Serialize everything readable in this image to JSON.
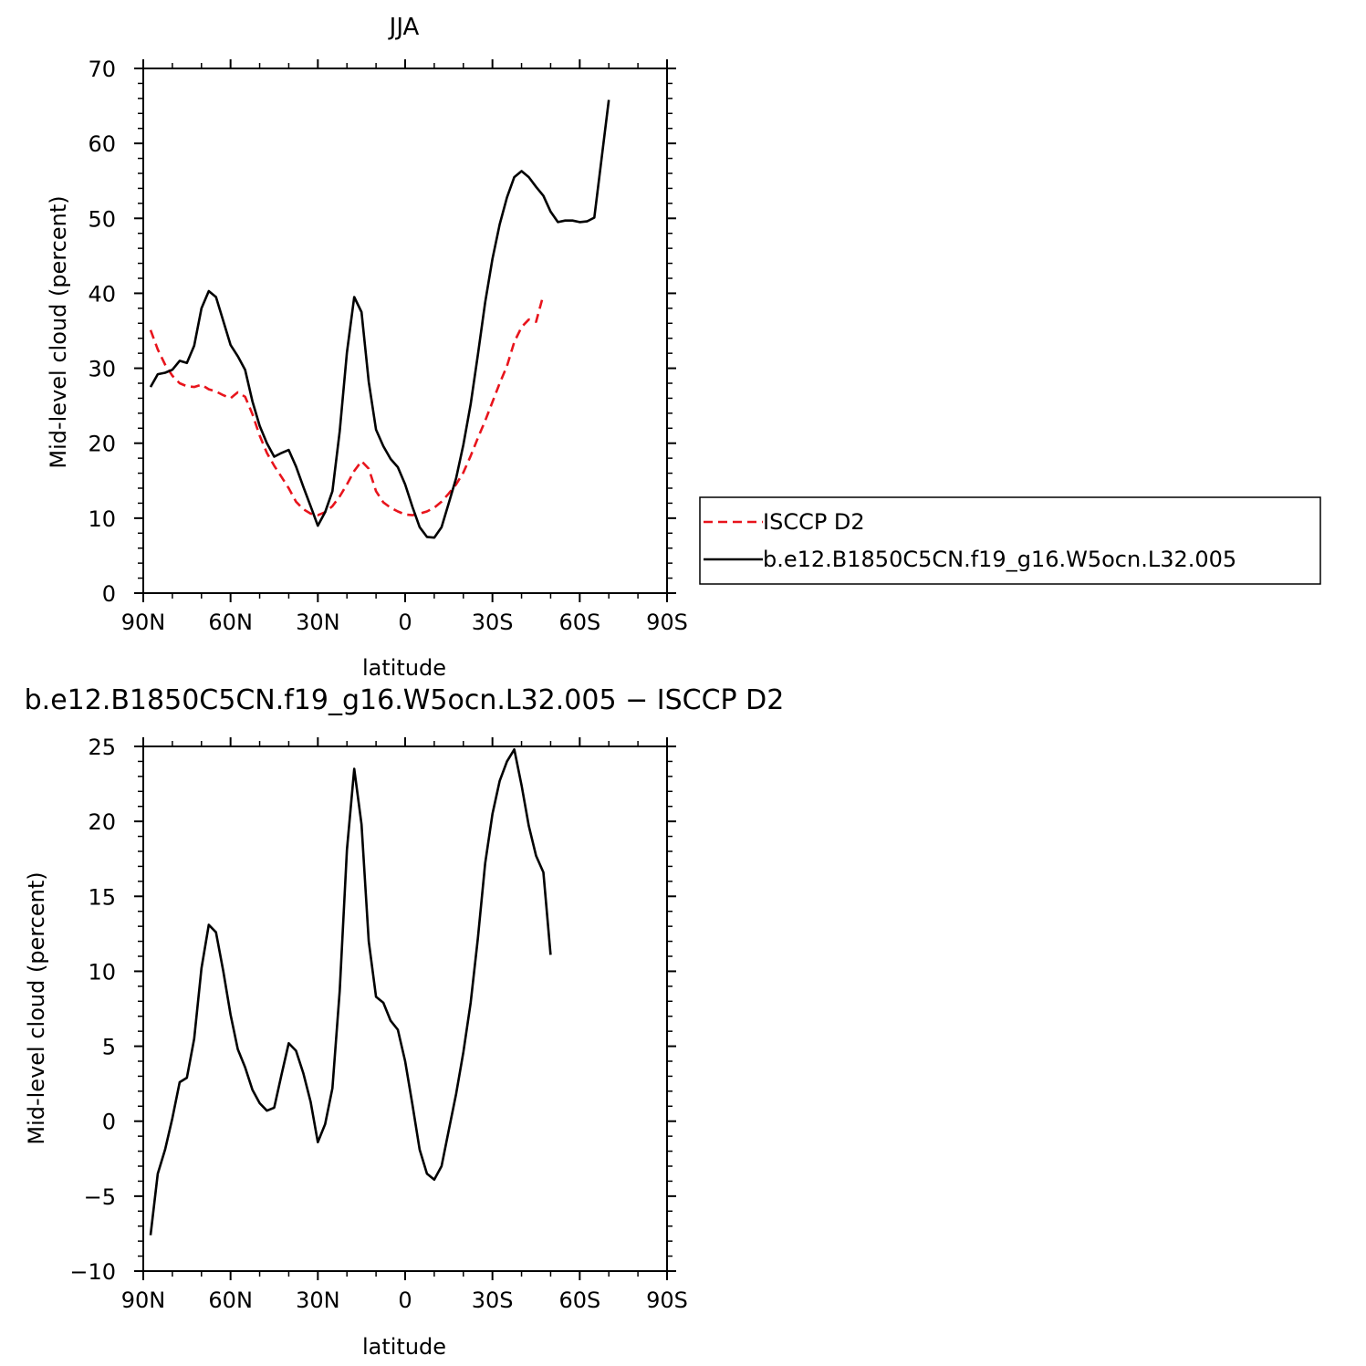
{
  "chart_data": [
    {
      "type": "line",
      "title": "JJA",
      "xlabel": "latitude",
      "ylabel": "Mid-level cloud (percent)",
      "xlim": [
        90,
        -90
      ],
      "ylim": [
        0,
        70
      ],
      "x_ticks": [
        {
          "value": 90,
          "label": "90N"
        },
        {
          "value": 60,
          "label": "60N"
        },
        {
          "value": 30,
          "label": "30N"
        },
        {
          "value": 0,
          "label": "0"
        },
        {
          "value": -30,
          "label": "30S"
        },
        {
          "value": -60,
          "label": "60S"
        },
        {
          "value": -90,
          "label": "90S"
        }
      ],
      "y_ticks": [
        0,
        10,
        20,
        30,
        40,
        50,
        60,
        70
      ],
      "grid": false,
      "legend_position": "right",
      "series": [
        {
          "name": "ISCCP D2",
          "color": "#e8141c",
          "dash": true,
          "points": [
            [
              87.5,
              35.1
            ],
            [
              85,
              32.5
            ],
            [
              82.5,
              30.5
            ],
            [
              80,
              29
            ],
            [
              77.5,
              28
            ],
            [
              75,
              27.6
            ],
            [
              72.5,
              27.5
            ],
            [
              70,
              27.8
            ],
            [
              67.5,
              27.2
            ],
            [
              65,
              26.9
            ],
            [
              62.5,
              26.4
            ],
            [
              60,
              26
            ],
            [
              57.5,
              26.8
            ],
            [
              55,
              26.2
            ],
            [
              52.5,
              23.9
            ],
            [
              50,
              21
            ],
            [
              47.5,
              18.7
            ],
            [
              45,
              17
            ],
            [
              42.5,
              15.5
            ],
            [
              40,
              14
            ],
            [
              37.5,
              12.2
            ],
            [
              35,
              11.2
            ],
            [
              32.5,
              10.6
            ],
            [
              30,
              10.4
            ],
            [
              27.5,
              10.8
            ],
            [
              25,
              11.6
            ],
            [
              22.5,
              12.9
            ],
            [
              20,
              14.5
            ],
            [
              17.5,
              16.3
            ],
            [
              15,
              17.6
            ],
            [
              12.5,
              16.6
            ],
            [
              10,
              13.6
            ],
            [
              7.5,
              12.1
            ],
            [
              5,
              11.4
            ],
            [
              2.5,
              10.9
            ],
            [
              0,
              10.5
            ],
            [
              -2.5,
              10.4
            ],
            [
              -5,
              10.6
            ],
            [
              -7.5,
              10.9
            ],
            [
              -10,
              11.4
            ],
            [
              -12.5,
              12.2
            ],
            [
              -15,
              13.3
            ],
            [
              -17.5,
              14.5
            ],
            [
              -20,
              16.1
            ],
            [
              -22.5,
              18.3
            ],
            [
              -25,
              20.7
            ],
            [
              -27.5,
              23
            ],
            [
              -30,
              25.5
            ],
            [
              -32.5,
              28
            ],
            [
              -35,
              30.3
            ],
            [
              -37.5,
              33.5
            ],
            [
              -40,
              35.5
            ],
            [
              -42.5,
              36.5
            ],
            [
              -45,
              36.2
            ],
            [
              -47.5,
              39.8
            ]
          ]
        },
        {
          "name": "b.e12.B1850C5CN.f19_g16.W5ocn.L32.005",
          "color": "#000000",
          "dash": false,
          "points": [
            [
              87.5,
              27.5
            ],
            [
              85,
              29.2
            ],
            [
              82.5,
              29.4
            ],
            [
              80,
              29.8
            ],
            [
              77.5,
              31
            ],
            [
              75,
              30.7
            ],
            [
              72.5,
              33
            ],
            [
              70,
              38
            ],
            [
              67.5,
              40.3
            ],
            [
              65,
              39.5
            ],
            [
              62.5,
              36.3
            ],
            [
              60,
              33.1
            ],
            [
              57.5,
              31.6
            ],
            [
              55,
              29.8
            ],
            [
              52.5,
              25.6
            ],
            [
              50,
              22.3
            ],
            [
              47.5,
              20
            ],
            [
              45,
              18.2
            ],
            [
              42.5,
              18.7
            ],
            [
              40,
              19.1
            ],
            [
              37.5,
              16.9
            ],
            [
              35,
              14.2
            ],
            [
              32.5,
              11.6
            ],
            [
              30,
              9
            ],
            [
              27.5,
              10.8
            ],
            [
              25,
              13.6
            ],
            [
              22.5,
              21.6
            ],
            [
              20,
              32.1
            ],
            [
              17.5,
              39.5
            ],
            [
              15,
              37.5
            ],
            [
              12.5,
              28.2
            ],
            [
              10,
              21.8
            ],
            [
              7.5,
              19.6
            ],
            [
              5,
              17.9
            ],
            [
              2.5,
              16.8
            ],
            [
              0,
              14.5
            ],
            [
              -2.5,
              11.5
            ],
            [
              -5,
              8.8
            ],
            [
              -7.5,
              7.5
            ],
            [
              -10,
              7.4
            ],
            [
              -12.5,
              8.8
            ],
            [
              -15,
              12
            ],
            [
              -17.5,
              15.3
            ],
            [
              -20,
              19.8
            ],
            [
              -22.5,
              25.2
            ],
            [
              -25,
              31.8
            ],
            [
              -27.5,
              38.8
            ],
            [
              -30,
              44.6
            ],
            [
              -32.5,
              49.2
            ],
            [
              -35,
              52.8
            ],
            [
              -37.5,
              55.5
            ],
            [
              -40,
              56.3
            ],
            [
              -42.5,
              55.5
            ],
            [
              -45,
              54.2
            ],
            [
              -47.5,
              53
            ],
            [
              -50,
              50.9
            ],
            [
              -52.5,
              49.5
            ],
            [
              -55,
              49.7
            ],
            [
              -57.5,
              49.7
            ],
            [
              -60,
              49.5
            ],
            [
              -62.5,
              49.6
            ],
            [
              -65,
              50.1
            ],
            [
              -67.5,
              58
            ],
            [
              -70,
              65.8
            ]
          ]
        }
      ]
    },
    {
      "type": "line",
      "title": "b.e12.B1850C5CN.f19_g16.W5ocn.L32.005 − ISCCP D2",
      "xlabel": "latitude",
      "ylabel": "Mid-level cloud (percent)",
      "xlim": [
        90,
        -90
      ],
      "ylim": [
        -10,
        25
      ],
      "x_ticks": [
        {
          "value": 90,
          "label": "90N"
        },
        {
          "value": 60,
          "label": "60N"
        },
        {
          "value": 30,
          "label": "30N"
        },
        {
          "value": 0,
          "label": "0"
        },
        {
          "value": -30,
          "label": "30S"
        },
        {
          "value": -60,
          "label": "60S"
        },
        {
          "value": -90,
          "label": "90S"
        }
      ],
      "y_ticks": [
        -10,
        -5,
        0,
        5,
        10,
        15,
        20,
        25
      ],
      "grid": false,
      "series": [
        {
          "color": "#000000",
          "dash": false,
          "points": [
            [
              87.5,
              -7.6
            ],
            [
              85,
              -3.5
            ],
            [
              82.5,
              -1.9
            ],
            [
              80,
              0.2
            ],
            [
              77.5,
              2.6
            ],
            [
              75,
              2.9
            ],
            [
              72.5,
              5.5
            ],
            [
              70,
              10.2
            ],
            [
              67.5,
              13.1
            ],
            [
              65,
              12.6
            ],
            [
              62.5,
              10
            ],
            [
              60,
              7.1
            ],
            [
              57.5,
              4.8
            ],
            [
              55,
              3.6
            ],
            [
              52.5,
              2.1
            ],
            [
              50,
              1.2
            ],
            [
              47.5,
              0.7
            ],
            [
              45,
              0.9
            ],
            [
              42.5,
              3.1
            ],
            [
              40,
              5.2
            ],
            [
              37.5,
              4.7
            ],
            [
              35,
              3.2
            ],
            [
              32.5,
              1.3
            ],
            [
              30,
              -1.4
            ],
            [
              27.5,
              -0.2
            ],
            [
              25,
              2.2
            ],
            [
              22.5,
              8.7
            ],
            [
              20,
              18.1
            ],
            [
              17.5,
              23.5
            ],
            [
              15,
              19.8
            ],
            [
              12.5,
              12
            ],
            [
              10,
              8.3
            ],
            [
              7.5,
              7.9
            ],
            [
              5,
              6.7
            ],
            [
              2.5,
              6.1
            ],
            [
              0,
              4
            ],
            [
              -2.5,
              1.1
            ],
            [
              -5,
              -1.9
            ],
            [
              -7.5,
              -3.5
            ],
            [
              -10,
              -3.9
            ],
            [
              -12.5,
              -3
            ],
            [
              -15,
              -0.6
            ],
            [
              -17.5,
              1.8
            ],
            [
              -20,
              4.6
            ],
            [
              -22.5,
              7.9
            ],
            [
              -25,
              12.2
            ],
            [
              -27.5,
              17.2
            ],
            [
              -30,
              20.5
            ],
            [
              -32.5,
              22.7
            ],
            [
              -35,
              24
            ],
            [
              -37.5,
              24.8
            ],
            [
              -40,
              22.4
            ],
            [
              -42.5,
              19.7
            ],
            [
              -45,
              17.7
            ],
            [
              -47.5,
              16.6
            ],
            [
              -50,
              11.1
            ]
          ]
        }
      ]
    }
  ]
}
